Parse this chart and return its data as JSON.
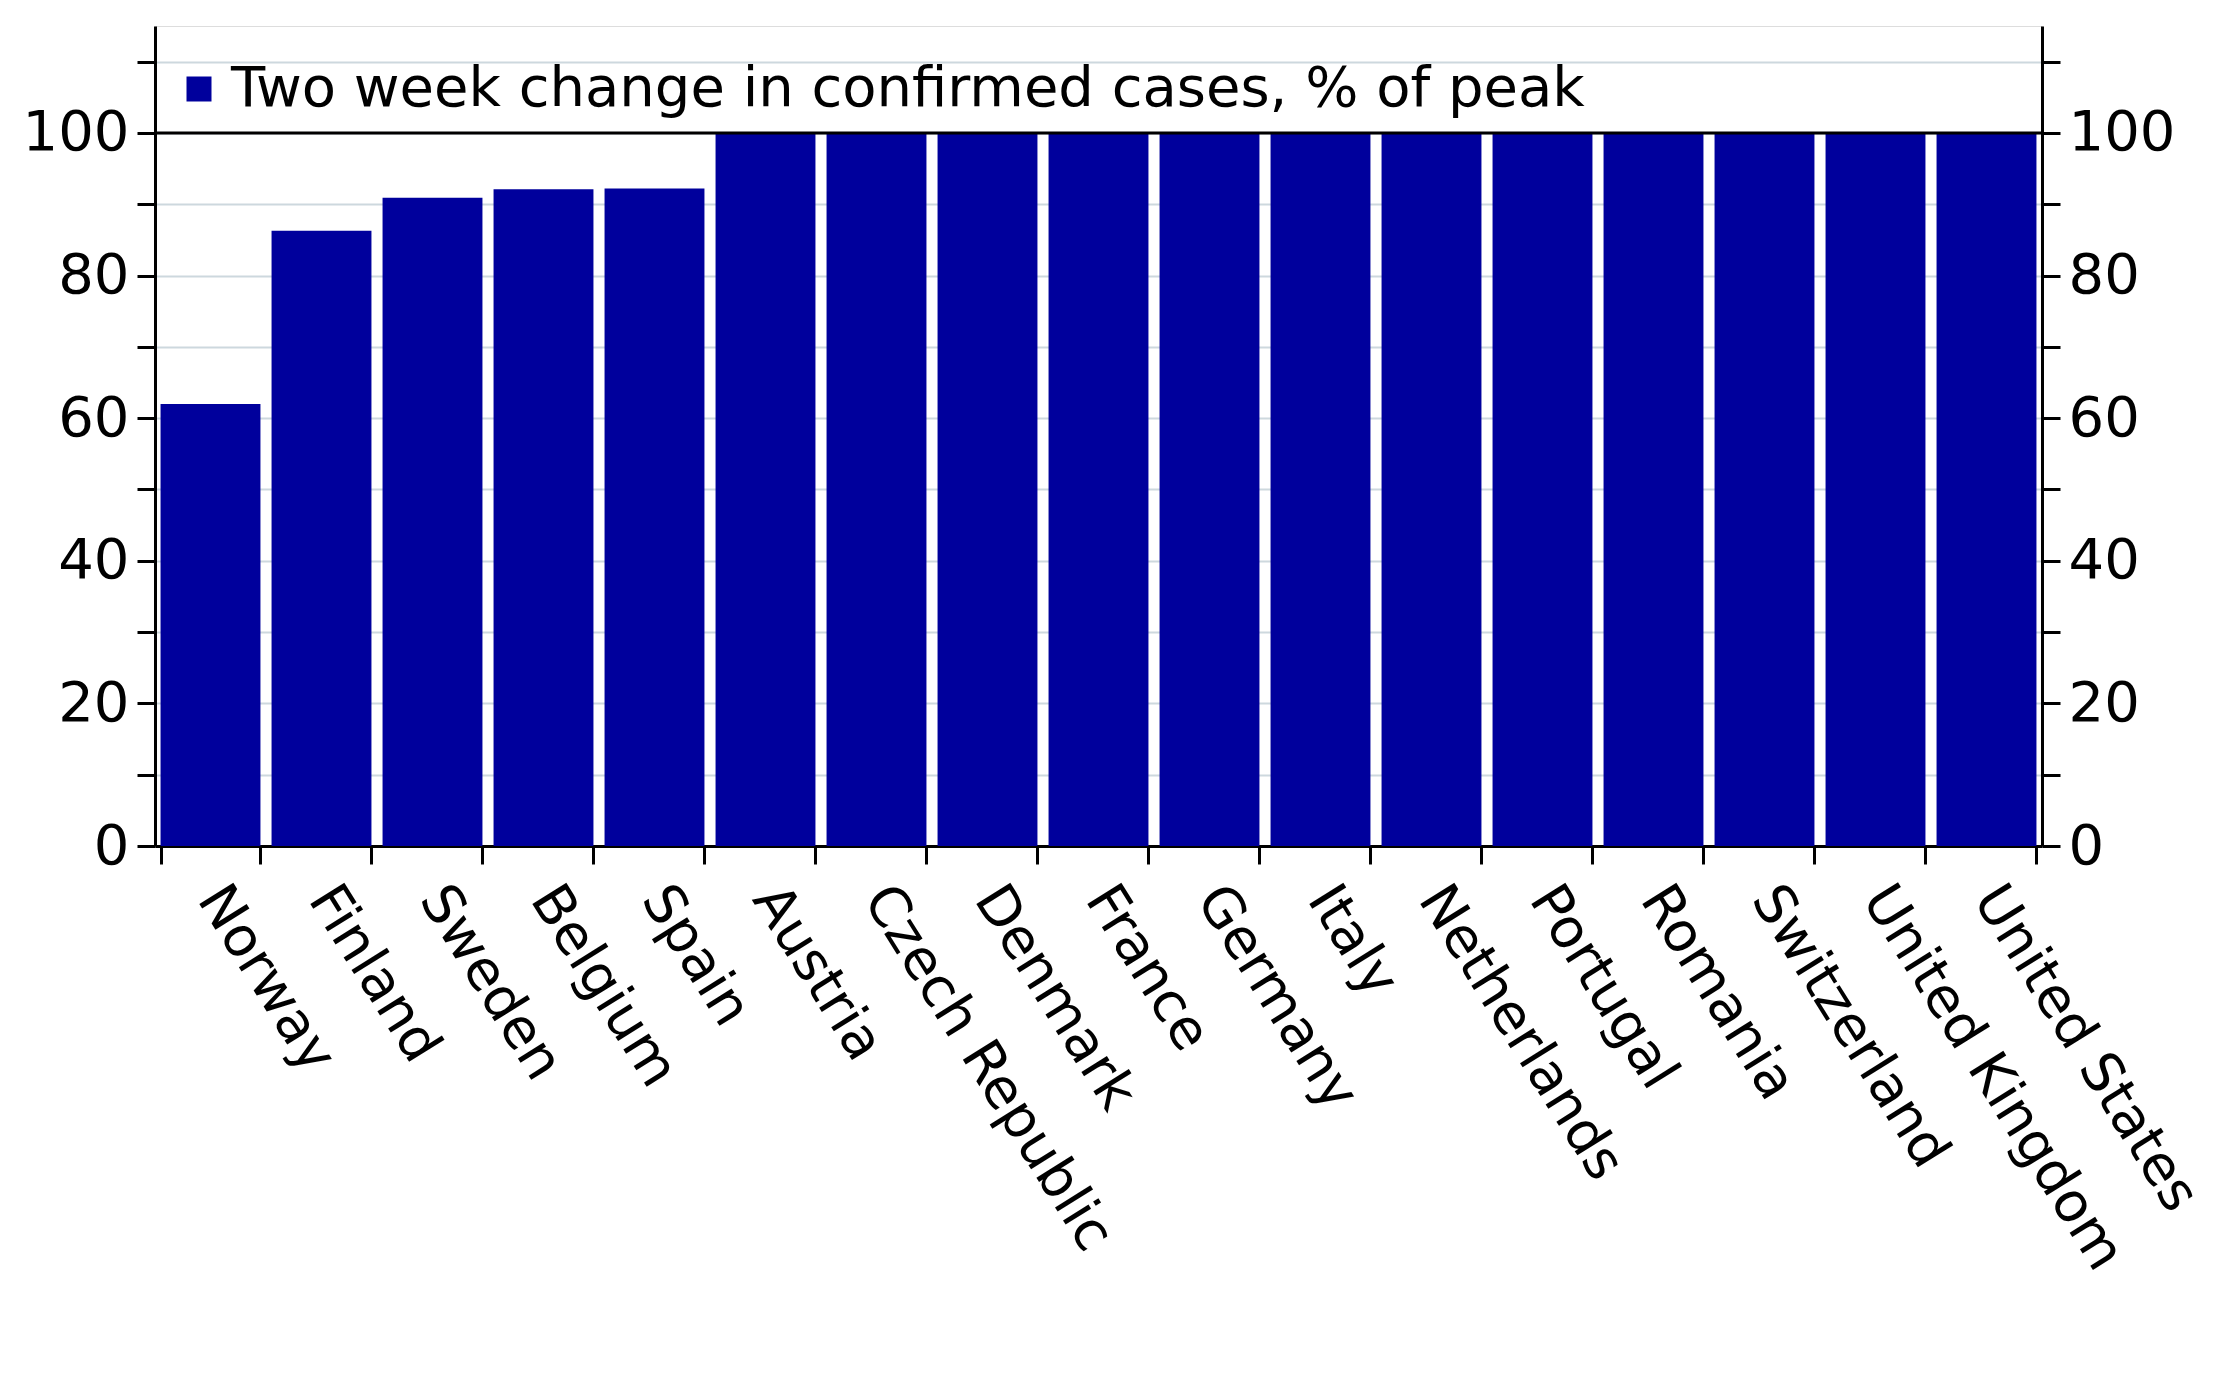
{
  "chart_data": {
    "type": "bar",
    "categories": [
      "Norway",
      "Finland",
      "Sweden",
      "Belgium",
      "Spain",
      "Austria",
      "Czech Republic",
      "Denmark",
      "France",
      "Germany",
      "Italy",
      "Netherlands",
      "Portugal",
      "Romania",
      "Switzerland",
      "United Kingdom",
      "United States"
    ],
    "series": [
      {
        "name": "Two week change in confirmed cases, % of peak",
        "color": "#00009c",
        "values": [
          62,
          86.3,
          90.9,
          92.1,
          92.2,
          100,
          100,
          100,
          100,
          100,
          100,
          100,
          100,
          100,
          100,
          100,
          100
        ]
      }
    ],
    "ylim": [
      0,
      115
    ],
    "yticks": [
      0,
      {
        "value": 10,
        "label": null
      },
      20,
      {
        "value": 30,
        "label": null
      },
      40,
      {
        "value": 50,
        "label": null
      },
      60,
      {
        "value": 70,
        "label": null
      },
      80,
      {
        "value": 90,
        "label": null
      },
      100,
      {
        "value": 110,
        "label": null
      }
    ],
    "y2lim": [
      0,
      115
    ],
    "y2ticks": [
      0,
      {
        "value": 10,
        "label": null
      },
      20,
      {
        "value": 30,
        "label": null
      },
      40,
      {
        "value": 50,
        "label": null
      },
      60,
      {
        "value": 70,
        "label": null
      },
      80,
      {
        "value": 90,
        "label": null
      },
      100,
      {
        "value": 110,
        "label": null
      }
    ],
    "grid": "y",
    "legend": "top left",
    "ref_lines": [
      {
        "axis": "y",
        "value": 100,
        "color": "#000000"
      }
    ]
  }
}
